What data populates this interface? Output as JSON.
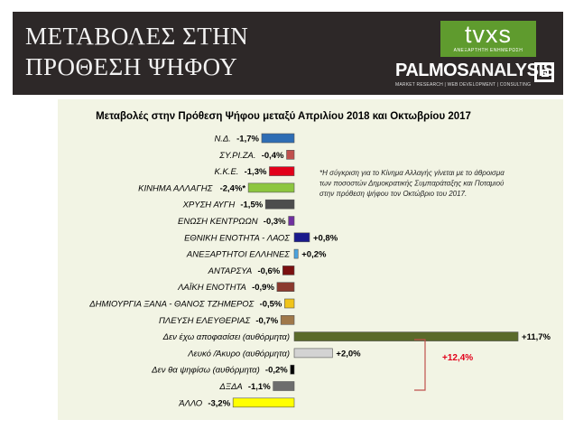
{
  "slide": {
    "title_lines": [
      "ΜΕΤΑΒΟΛΕΣ ΣΤΗΝ",
      "ΠΡΟΘΕΣΗ ΨΗΦΟΥ"
    ],
    "logos": {
      "tvxs": {
        "text": "tvxs",
        "tagline": "ΑΝΕΞΑΡΤΗΤΗ ΕΝΗΜΕΡΩΣΗ",
        "color": "#5f9b2e"
      },
      "palmos": {
        "word1": "PALMOS",
        "word2": "ANALYSIS",
        "tagline": "MARKET RESEARCH | WEB DEVELOPMENT | CONSULTING"
      }
    }
  },
  "chart_data": {
    "type": "bar",
    "orientation": "horizontal",
    "title": "Μεταβολές στην Πρόθεση Ψήφου μεταξύ Απριλίου 2018 και Οκτωβρίου 2017",
    "categories": [
      "Ν.Δ.",
      "ΣΥ.ΡΙ.ΖΑ.",
      "Κ.Κ.Ε.",
      "ΚΙΝΗΜΑ ΑΛΛΑΓΗΣ",
      "ΧΡΥΣΗ ΑΥΓΗ",
      "ΕΝΩΣΗ ΚΕΝΤΡΩΩΝ",
      "ΕΘΝΙΚΗ ΕΝΟΤΗΤΑ - ΛΑΟΣ",
      "ΑΝΕΞΑΡΤΗΤΟΙ ΕΛΛΗΝΕΣ",
      "ΑΝΤΑΡΣΥΑ",
      "ΛΑΪΚΗ ΕΝΟΤΗΤΑ",
      "ΔΗΜΙΟΥΡΓΙΑ ΞΑΝΑ - ΘΑΝΟΣ ΤΖΗΜΕΡΟΣ",
      "ΠΛΕΥΣΗ ΕΛΕΥΘΕΡΙΑΣ",
      "Δεν έχω αποφασίσει (αυθόρμητα)",
      "Λευκό /Άκυρο (αυθόρμητα)",
      "Δεν θα ψηφίσω (αυθόρμητα)",
      "ΔΞΔΑ",
      "ΆΛΛΟ"
    ],
    "values": [
      -1.7,
      -0.4,
      -1.3,
      -2.4,
      -1.5,
      -0.3,
      0.8,
      0.2,
      -0.6,
      -0.9,
      -0.5,
      -0.7,
      11.7,
      2.0,
      -0.2,
      -1.1,
      -3.2
    ],
    "value_labels": [
      "-1,7%",
      "-0,4%",
      "-1,3%",
      "-2,4%*",
      "-1,5%",
      "-0,3%",
      "+0,8%",
      "+0,2%",
      "-0,6%",
      "-0,9%",
      "-0,5%",
      "-0,7%",
      "+11,7%",
      "+2,0%",
      "-0,2%",
      "-1,1%",
      "-3,2%"
    ],
    "colors": [
      "#2e6db4",
      "#c0504d",
      "#e2001a",
      "#8dc63f",
      "#4d4d4d",
      "#7030a0",
      "#1a1a8c",
      "#4aa3df",
      "#7b1010",
      "#8b3a2e",
      "#f0c419",
      "#a0784a",
      "#5a6a2a",
      "#d3d3d3",
      "#000000",
      "#6d6d6d",
      "#ffff00"
    ],
    "xlim": [
      -3.5,
      12
    ],
    "note": [
      "*Η σύγκριση για το Κίνημα Αλλαγής γίνεται με το άθροισμα",
      "των ποσοστών Δημοκρατικής Συμπαράταξης και Ποταμιού",
      "στην πρόθεση ψήφου τον Οκτώβριο του 2017."
    ],
    "bracket_label": "+12,4%",
    "bracket_color": "#c0504d",
    "sum_color": "#e2001a",
    "legend": "none",
    "grid": false
  }
}
